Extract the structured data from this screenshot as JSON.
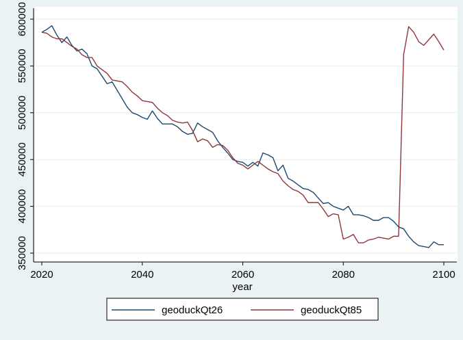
{
  "chart_data": {
    "type": "line",
    "title": "",
    "xlabel": "year",
    "ylabel": "",
    "xlim": [
      2020,
      2100
    ],
    "ylim": [
      350000,
      600000
    ],
    "xticks": [
      2020,
      2040,
      2060,
      2080,
      2100
    ],
    "yticks": [
      350000,
      400000,
      450000,
      500000,
      550000,
      600000
    ],
    "grid": "horizontal",
    "legend_position": "bottom",
    "colors": {
      "plot_bg": "#ffffff",
      "outer_bg": "#eaf2f3",
      "grid": "#e5ebef"
    },
    "x": [
      2020,
      2021,
      2022,
      2023,
      2024,
      2025,
      2026,
      2027,
      2028,
      2029,
      2030,
      2031,
      2032,
      2033,
      2034,
      2035,
      2036,
      2037,
      2038,
      2039,
      2040,
      2041,
      2042,
      2043,
      2044,
      2045,
      2046,
      2047,
      2048,
      2049,
      2050,
      2051,
      2052,
      2053,
      2054,
      2055,
      2056,
      2057,
      2058,
      2059,
      2060,
      2061,
      2062,
      2063,
      2064,
      2065,
      2066,
      2067,
      2068,
      2069,
      2070,
      2071,
      2072,
      2073,
      2074,
      2075,
      2076,
      2077,
      2078,
      2079,
      2080,
      2081,
      2082,
      2083,
      2084,
      2085,
      2086,
      2087,
      2088,
      2089,
      2090,
      2091,
      2092,
      2093,
      2094,
      2095,
      2096,
      2097,
      2098,
      2099,
      2100
    ],
    "series": [
      {
        "name": "geoduckQt26",
        "color": "#1a476f",
        "values": [
          586000,
          589000,
          593000,
          583000,
          575000,
          581000,
          572000,
          566000,
          568000,
          563000,
          550000,
          547000,
          539000,
          531000,
          533000,
          524000,
          515000,
          506000,
          500000,
          498000,
          495000,
          493000,
          502000,
          494000,
          488000,
          488000,
          488000,
          485000,
          480000,
          477000,
          478000,
          489000,
          485000,
          482000,
          479000,
          470000,
          463000,
          457000,
          450000,
          448000,
          447000,
          443000,
          447000,
          443000,
          457000,
          455000,
          452000,
          438000,
          444000,
          430000,
          427000,
          423000,
          419000,
          418000,
          415000,
          409000,
          403000,
          404000,
          400000,
          398000,
          396000,
          400000,
          391000,
          391000,
          390000,
          388000,
          385000,
          385000,
          388000,
          388000,
          384000,
          378000,
          376000,
          368000,
          362000,
          358000,
          357000,
          356000,
          362000,
          359000,
          359000
        ]
      },
      {
        "name": "geoduckQt85",
        "color": "#90353b",
        "values": [
          586000,
          585000,
          581000,
          579000,
          579000,
          575000,
          571000,
          568000,
          562000,
          559000,
          559000,
          550000,
          546000,
          542000,
          535000,
          534000,
          533000,
          528000,
          522000,
          518000,
          513000,
          512000,
          511000,
          505000,
          500000,
          497000,
          492000,
          490000,
          489000,
          490000,
          481000,
          469000,
          472000,
          470000,
          463000,
          466000,
          465000,
          460000,
          452000,
          446000,
          444000,
          440000,
          444000,
          448000,
          444000,
          440000,
          437000,
          435000,
          427000,
          422000,
          418000,
          416000,
          412000,
          404000,
          404000,
          404000,
          397000,
          389000,
          392000,
          391000,
          365000,
          367000,
          370000,
          361000,
          361000,
          364000,
          365000,
          367000,
          366000,
          365000,
          368000,
          368000,
          562000,
          592000,
          586000,
          576000,
          572000,
          578000,
          584000,
          576000,
          567000
        ]
      }
    ]
  }
}
